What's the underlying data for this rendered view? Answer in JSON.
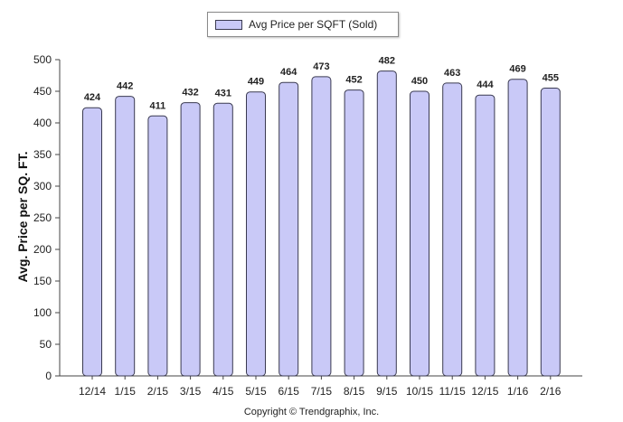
{
  "chart_data": {
    "type": "bar",
    "title": "",
    "xlabel": "",
    "ylabel": "Avg. Price per SQ. FT.",
    "categories": [
      "12/14",
      "1/15",
      "2/15",
      "3/15",
      "4/15",
      "5/15",
      "6/15",
      "7/15",
      "8/15",
      "9/15",
      "10/15",
      "11/15",
      "12/15",
      "1/16",
      "2/16"
    ],
    "series": [
      {
        "name": "Avg Price per SQFT (Sold)",
        "values": [
          424,
          442,
          411,
          432,
          431,
          449,
          464,
          473,
          452,
          482,
          450,
          463,
          444,
          469,
          455
        ],
        "color": "#c9c9f7"
      }
    ],
    "ylim": [
      0,
      500
    ],
    "yticks": [
      0,
      50,
      100,
      150,
      200,
      250,
      300,
      350,
      400,
      450,
      500
    ],
    "grid": false,
    "legend": "top-center",
    "data_labels": true
  },
  "footer": {
    "copyright": "Copyright © Trendgraphix, Inc."
  }
}
